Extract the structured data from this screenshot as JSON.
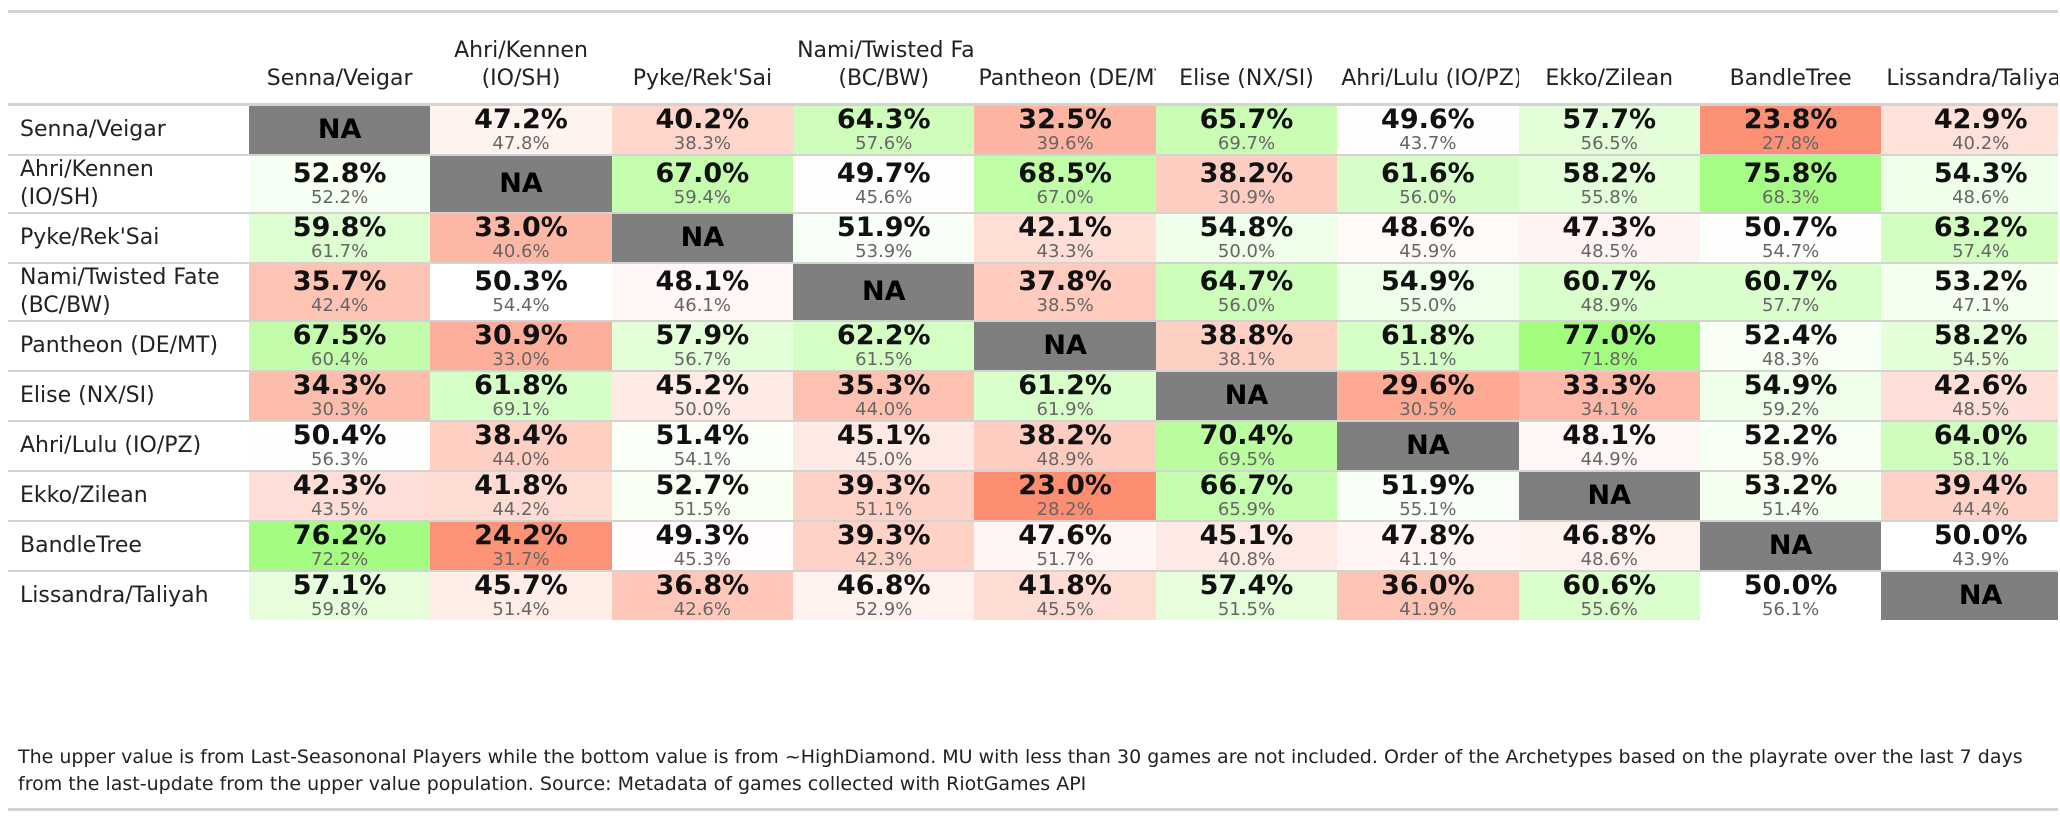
{
  "chart_data": {
    "type": "heatmap",
    "columns": [
      "Senna/Veigar",
      "Ahri/Kennen (IO/SH)",
      "Pyke/Rek'Sai",
      "Nami/Twisted Fate (BC/BW)",
      "Pantheon (DE/MT)",
      "Elise (NX/SI)",
      "Ahri/Lulu (IO/PZ)",
      "Ekko/Zilean",
      "BandleTree",
      "Lissandra/Taliyah"
    ],
    "rows": [
      {
        "label": "Senna/Veigar",
        "upper": [
          null,
          "47.2%",
          "40.2%",
          "64.3%",
          "32.5%",
          "65.7%",
          "49.6%",
          "57.7%",
          "23.8%",
          "42.9%"
        ],
        "lower": [
          null,
          "47.8%",
          "38.3%",
          "57.6%",
          "39.6%",
          "69.7%",
          "43.7%",
          "56.5%",
          "27.8%",
          "40.2%"
        ]
      },
      {
        "label": "Ahri/Kennen (IO/SH)",
        "upper": [
          "52.8%",
          null,
          "67.0%",
          "49.7%",
          "68.5%",
          "38.2%",
          "61.6%",
          "58.2%",
          "75.8%",
          "54.3%"
        ],
        "lower": [
          "52.2%",
          null,
          "59.4%",
          "45.6%",
          "67.0%",
          "30.9%",
          "56.0%",
          "55.8%",
          "68.3%",
          "48.6%"
        ]
      },
      {
        "label": "Pyke/Rek'Sai",
        "upper": [
          "59.8%",
          "33.0%",
          null,
          "51.9%",
          "42.1%",
          "54.8%",
          "48.6%",
          "47.3%",
          "50.7%",
          "63.2%"
        ],
        "lower": [
          "61.7%",
          "40.6%",
          null,
          "53.9%",
          "43.3%",
          "50.0%",
          "45.9%",
          "48.5%",
          "54.7%",
          "57.4%"
        ]
      },
      {
        "label": "Nami/Twisted Fate (BC/BW)",
        "upper": [
          "35.7%",
          "50.3%",
          "48.1%",
          null,
          "37.8%",
          "64.7%",
          "54.9%",
          "60.7%",
          "60.7%",
          "53.2%"
        ],
        "lower": [
          "42.4%",
          "54.4%",
          "46.1%",
          null,
          "38.5%",
          "56.0%",
          "55.0%",
          "48.9%",
          "57.7%",
          "47.1%"
        ]
      },
      {
        "label": "Pantheon (DE/MT)",
        "upper": [
          "67.5%",
          "30.9%",
          "57.9%",
          "62.2%",
          null,
          "38.8%",
          "61.8%",
          "77.0%",
          "52.4%",
          "58.2%"
        ],
        "lower": [
          "60.4%",
          "33.0%",
          "56.7%",
          "61.5%",
          null,
          "38.1%",
          "51.1%",
          "71.8%",
          "48.3%",
          "54.5%"
        ]
      },
      {
        "label": "Elise (NX/SI)",
        "upper": [
          "34.3%",
          "61.8%",
          "45.2%",
          "35.3%",
          "61.2%",
          null,
          "29.6%",
          "33.3%",
          "54.9%",
          "42.6%"
        ],
        "lower": [
          "30.3%",
          "69.1%",
          "50.0%",
          "44.0%",
          "61.9%",
          null,
          "30.5%",
          "34.1%",
          "59.2%",
          "48.5%"
        ]
      },
      {
        "label": "Ahri/Lulu (IO/PZ)",
        "upper": [
          "50.4%",
          "38.4%",
          "51.4%",
          "45.1%",
          "38.2%",
          "70.4%",
          null,
          "48.1%",
          "52.2%",
          "64.0%"
        ],
        "lower": [
          "56.3%",
          "44.0%",
          "54.1%",
          "45.0%",
          "48.9%",
          "69.5%",
          null,
          "44.9%",
          "58.9%",
          "58.1%"
        ]
      },
      {
        "label": "Ekko/Zilean",
        "upper": [
          "42.3%",
          "41.8%",
          "52.7%",
          "39.3%",
          "23.0%",
          "66.7%",
          "51.9%",
          null,
          "53.2%",
          "39.4%"
        ],
        "lower": [
          "43.5%",
          "44.2%",
          "51.5%",
          "51.1%",
          "28.2%",
          "65.9%",
          "55.1%",
          null,
          "51.4%",
          "44.4%"
        ]
      },
      {
        "label": "BandleTree",
        "upper": [
          "76.2%",
          "24.2%",
          "49.3%",
          "39.3%",
          "47.6%",
          "45.1%",
          "47.8%",
          "46.8%",
          null,
          "50.0%"
        ],
        "lower": [
          "72.2%",
          "31.7%",
          "45.3%",
          "42.3%",
          "51.7%",
          "40.8%",
          "41.1%",
          "48.6%",
          null,
          "43.9%"
        ]
      },
      {
        "label": "Lissandra/Taliyah",
        "upper": [
          "57.1%",
          "45.7%",
          "36.8%",
          "46.8%",
          "41.8%",
          "57.4%",
          "36.0%",
          "60.6%",
          "50.0%",
          null
        ],
        "lower": [
          "59.8%",
          "51.4%",
          "42.6%",
          "52.9%",
          "45.5%",
          "51.5%",
          "41.9%",
          "55.6%",
          "56.1%",
          null
        ]
      }
    ],
    "na_label": "NA",
    "colors": {
      "na": "#7f7f7f",
      "low": "#fc8d70",
      "mid": "#ffffff",
      "high": "#a2fc7e"
    }
  },
  "footnote": "The upper value is from Last-Seasononal Players while the bottom value is from ~HighDiamond. MU with less than 30 games are not included. Order of the Archetypes based on the playrate over the last 7 days from the last-update from the upper value population. Source: Metadata of games collected with RiotGames API"
}
